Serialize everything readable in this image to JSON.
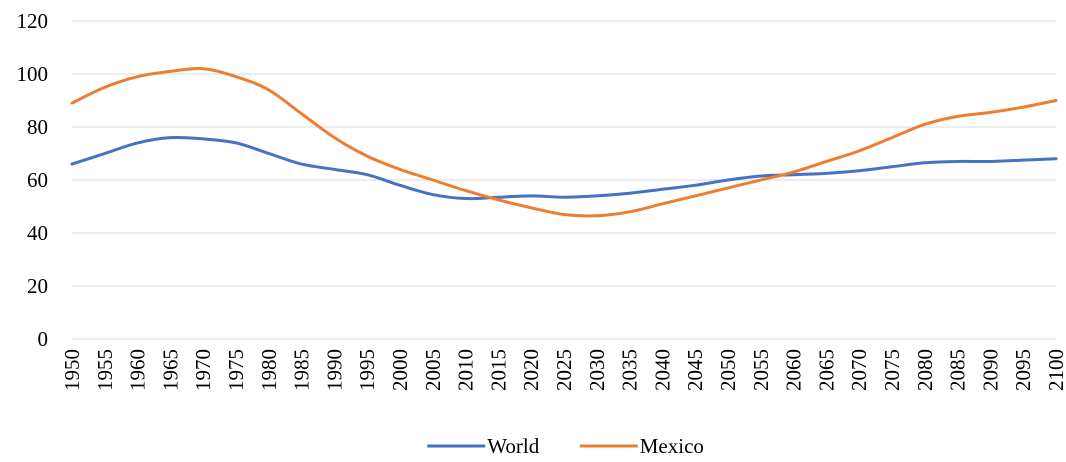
{
  "chart_data": {
    "type": "line",
    "title": "",
    "xlabel": "",
    "ylabel": "",
    "ylim": [
      0,
      120
    ],
    "yticks": [
      "0",
      "20",
      "40",
      "60",
      "80",
      "100",
      "120"
    ],
    "xlim": [
      1950,
      2100
    ],
    "xticks": [
      "1950",
      "1955",
      "1960",
      "1965",
      "1970",
      "1975",
      "1980",
      "1985",
      "1990",
      "1995",
      "2000",
      "2005",
      "2010",
      "2015",
      "2020",
      "2025",
      "2030",
      "2035",
      "2040",
      "2045",
      "2050",
      "2055",
      "2060",
      "2065",
      "2070",
      "2075",
      "2080",
      "2085",
      "2090",
      "2095",
      "2100"
    ],
    "grid": true,
    "legend_position": "bottom",
    "x": [
      1950,
      1955,
      1960,
      1965,
      1970,
      1975,
      1980,
      1985,
      1990,
      1995,
      2000,
      2005,
      2010,
      2015,
      2020,
      2025,
      2030,
      2035,
      2040,
      2045,
      2050,
      2055,
      2060,
      2065,
      2070,
      2075,
      2080,
      2085,
      2090,
      2095,
      2100
    ],
    "series": [
      {
        "name": "World",
        "color": "#4472c4",
        "values": [
          66,
          70,
          74,
          76,
          75.5,
          74,
          70,
          66,
          64,
          62,
          58,
          54.5,
          53,
          53.5,
          54,
          53.5,
          54,
          55,
          56.5,
          58,
          60,
          61.5,
          62,
          62.5,
          63.5,
          65,
          66.5,
          67,
          67,
          67.5,
          68
        ]
      },
      {
        "name": "Mexico",
        "color": "#ed7d31",
        "values": [
          89,
          95,
          99,
          101,
          102,
          99,
          94,
          85,
          76,
          69,
          64,
          60,
          56,
          52.5,
          49.5,
          47,
          46.5,
          48,
          51,
          54,
          57,
          60,
          63,
          67,
          71,
          76,
          81,
          84,
          85.5,
          87.5,
          90
        ]
      }
    ]
  }
}
